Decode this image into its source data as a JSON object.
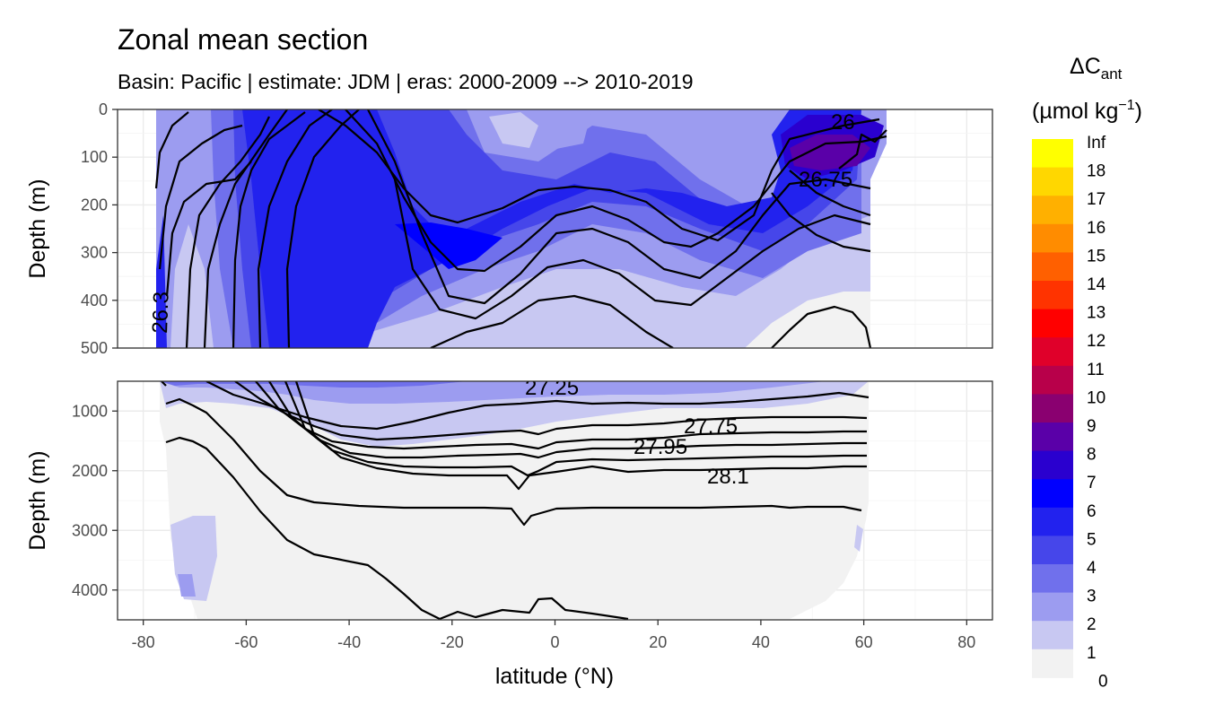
{
  "chart_data": {
    "type": "filled-contour",
    "title": "Zonal mean section",
    "subtitle": "Basin: Pacific | estimate: JDM  | eras: 2000-2009 --> 2010-2019",
    "xlabel": "latitude (°N)",
    "ylabel": "Depth (m)",
    "xlim": [
      -85,
      85
    ],
    "x_ticks": [
      -80,
      -60,
      -40,
      -20,
      0,
      20,
      40,
      60,
      80
    ],
    "data_lat_range": [
      -77,
      65
    ],
    "panels": [
      {
        "name": "upper",
        "ylim": [
          500,
          0
        ],
        "y_ticks": [
          0,
          100,
          200,
          300,
          400,
          500
        ]
      },
      {
        "name": "lower",
        "ylim": [
          4500,
          500
        ],
        "y_ticks": [
          1000,
          2000,
          3000,
          4000
        ]
      }
    ],
    "legend": {
      "title_main": "ΔC",
      "title_sub": "ant",
      "units_pre": "(µmol kg",
      "units_sup": "−1",
      "units_post": ")",
      "levels": [
        "Inf",
        "18",
        "17",
        "16",
        "15",
        "14",
        "13",
        "12",
        "11",
        "10",
        "9",
        "8",
        "7",
        "6",
        "5",
        "4",
        "3",
        "2",
        "1",
        "0"
      ],
      "colors": [
        "#ffff00",
        "#ffd700",
        "#ffb000",
        "#ff8c00",
        "#ff6000",
        "#ff3300",
        "#ff0000",
        "#e0002a",
        "#b8004a",
        "#8a0070",
        "#5a00a8",
        "#2a00cf",
        "#0000ff",
        "#2222ee",
        "#4646ea",
        "#7070ec",
        "#9c9cf0",
        "#c8c8f2",
        "#f2f2f2"
      ]
    },
    "contour_labels": [
      "26",
      "26.75",
      "26.3",
      "27.25",
      "27.75",
      "27.95",
      "28.1"
    ],
    "fill_colors": {
      "c0": "#f2f2f2",
      "c1": "#c8c8f2",
      "c2": "#9c9cf0",
      "c3": "#7070ec",
      "c4": "#4646ea",
      "c5": "#2222ee",
      "c6": "#0000ff",
      "c7": "#2a00cf",
      "c8": "#5a00a8"
    }
  }
}
